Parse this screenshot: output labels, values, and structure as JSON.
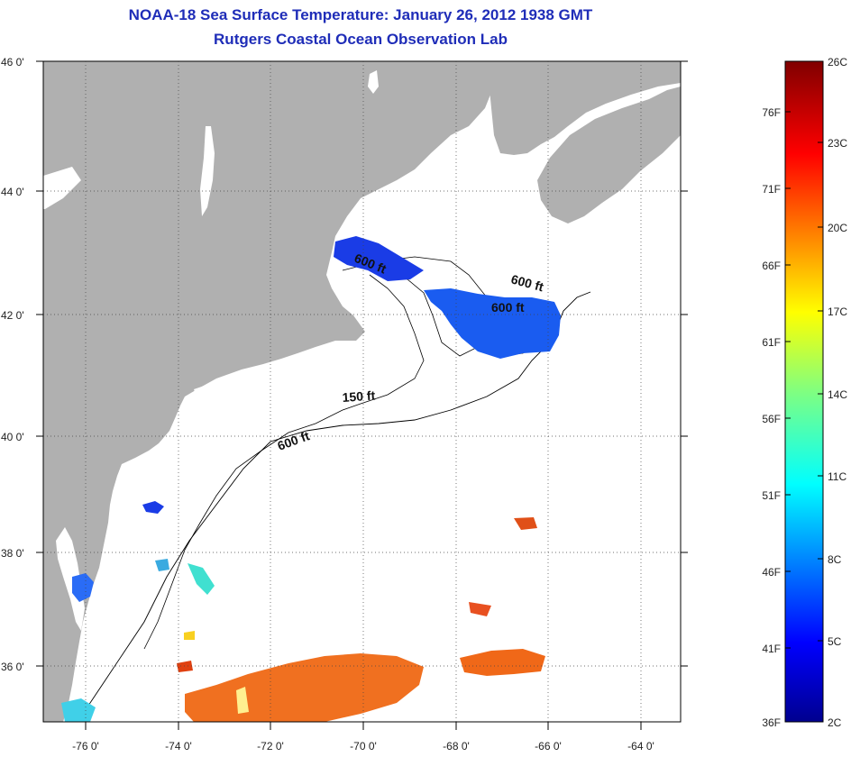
{
  "title_line1": "NOAA-18 Sea Surface Temperature:  January 26, 2012 1938 GMT",
  "title_line2": "Rutgers Coastal Ocean Observation Lab",
  "lat_labels": [
    "46 0'",
    "44 0'",
    "42 0'",
    "40 0'",
    "38 0'",
    "36 0'"
  ],
  "lon_labels": [
    "-76 0'",
    "-74 0'",
    "-72 0'",
    "-70 0'",
    "-68 0'",
    "-66 0'",
    "-64 0'"
  ],
  "contour_labels": [
    "600 ft",
    "600 ft",
    "600 ft",
    "150 ft",
    "600 ft"
  ],
  "colorbar": {
    "celsius": [
      "26C",
      "23C",
      "20C",
      "17C",
      "14C",
      "11C",
      "8C",
      "5C",
      "2C"
    ],
    "fahrenheit": [
      "76F",
      "71F",
      "66F",
      "61F",
      "56F",
      "51F",
      "46F",
      "41F",
      "36F"
    ]
  },
  "colors": {
    "land": "#b0b0b0",
    "ocean": "#ffffff",
    "title": "#1f2db8"
  }
}
